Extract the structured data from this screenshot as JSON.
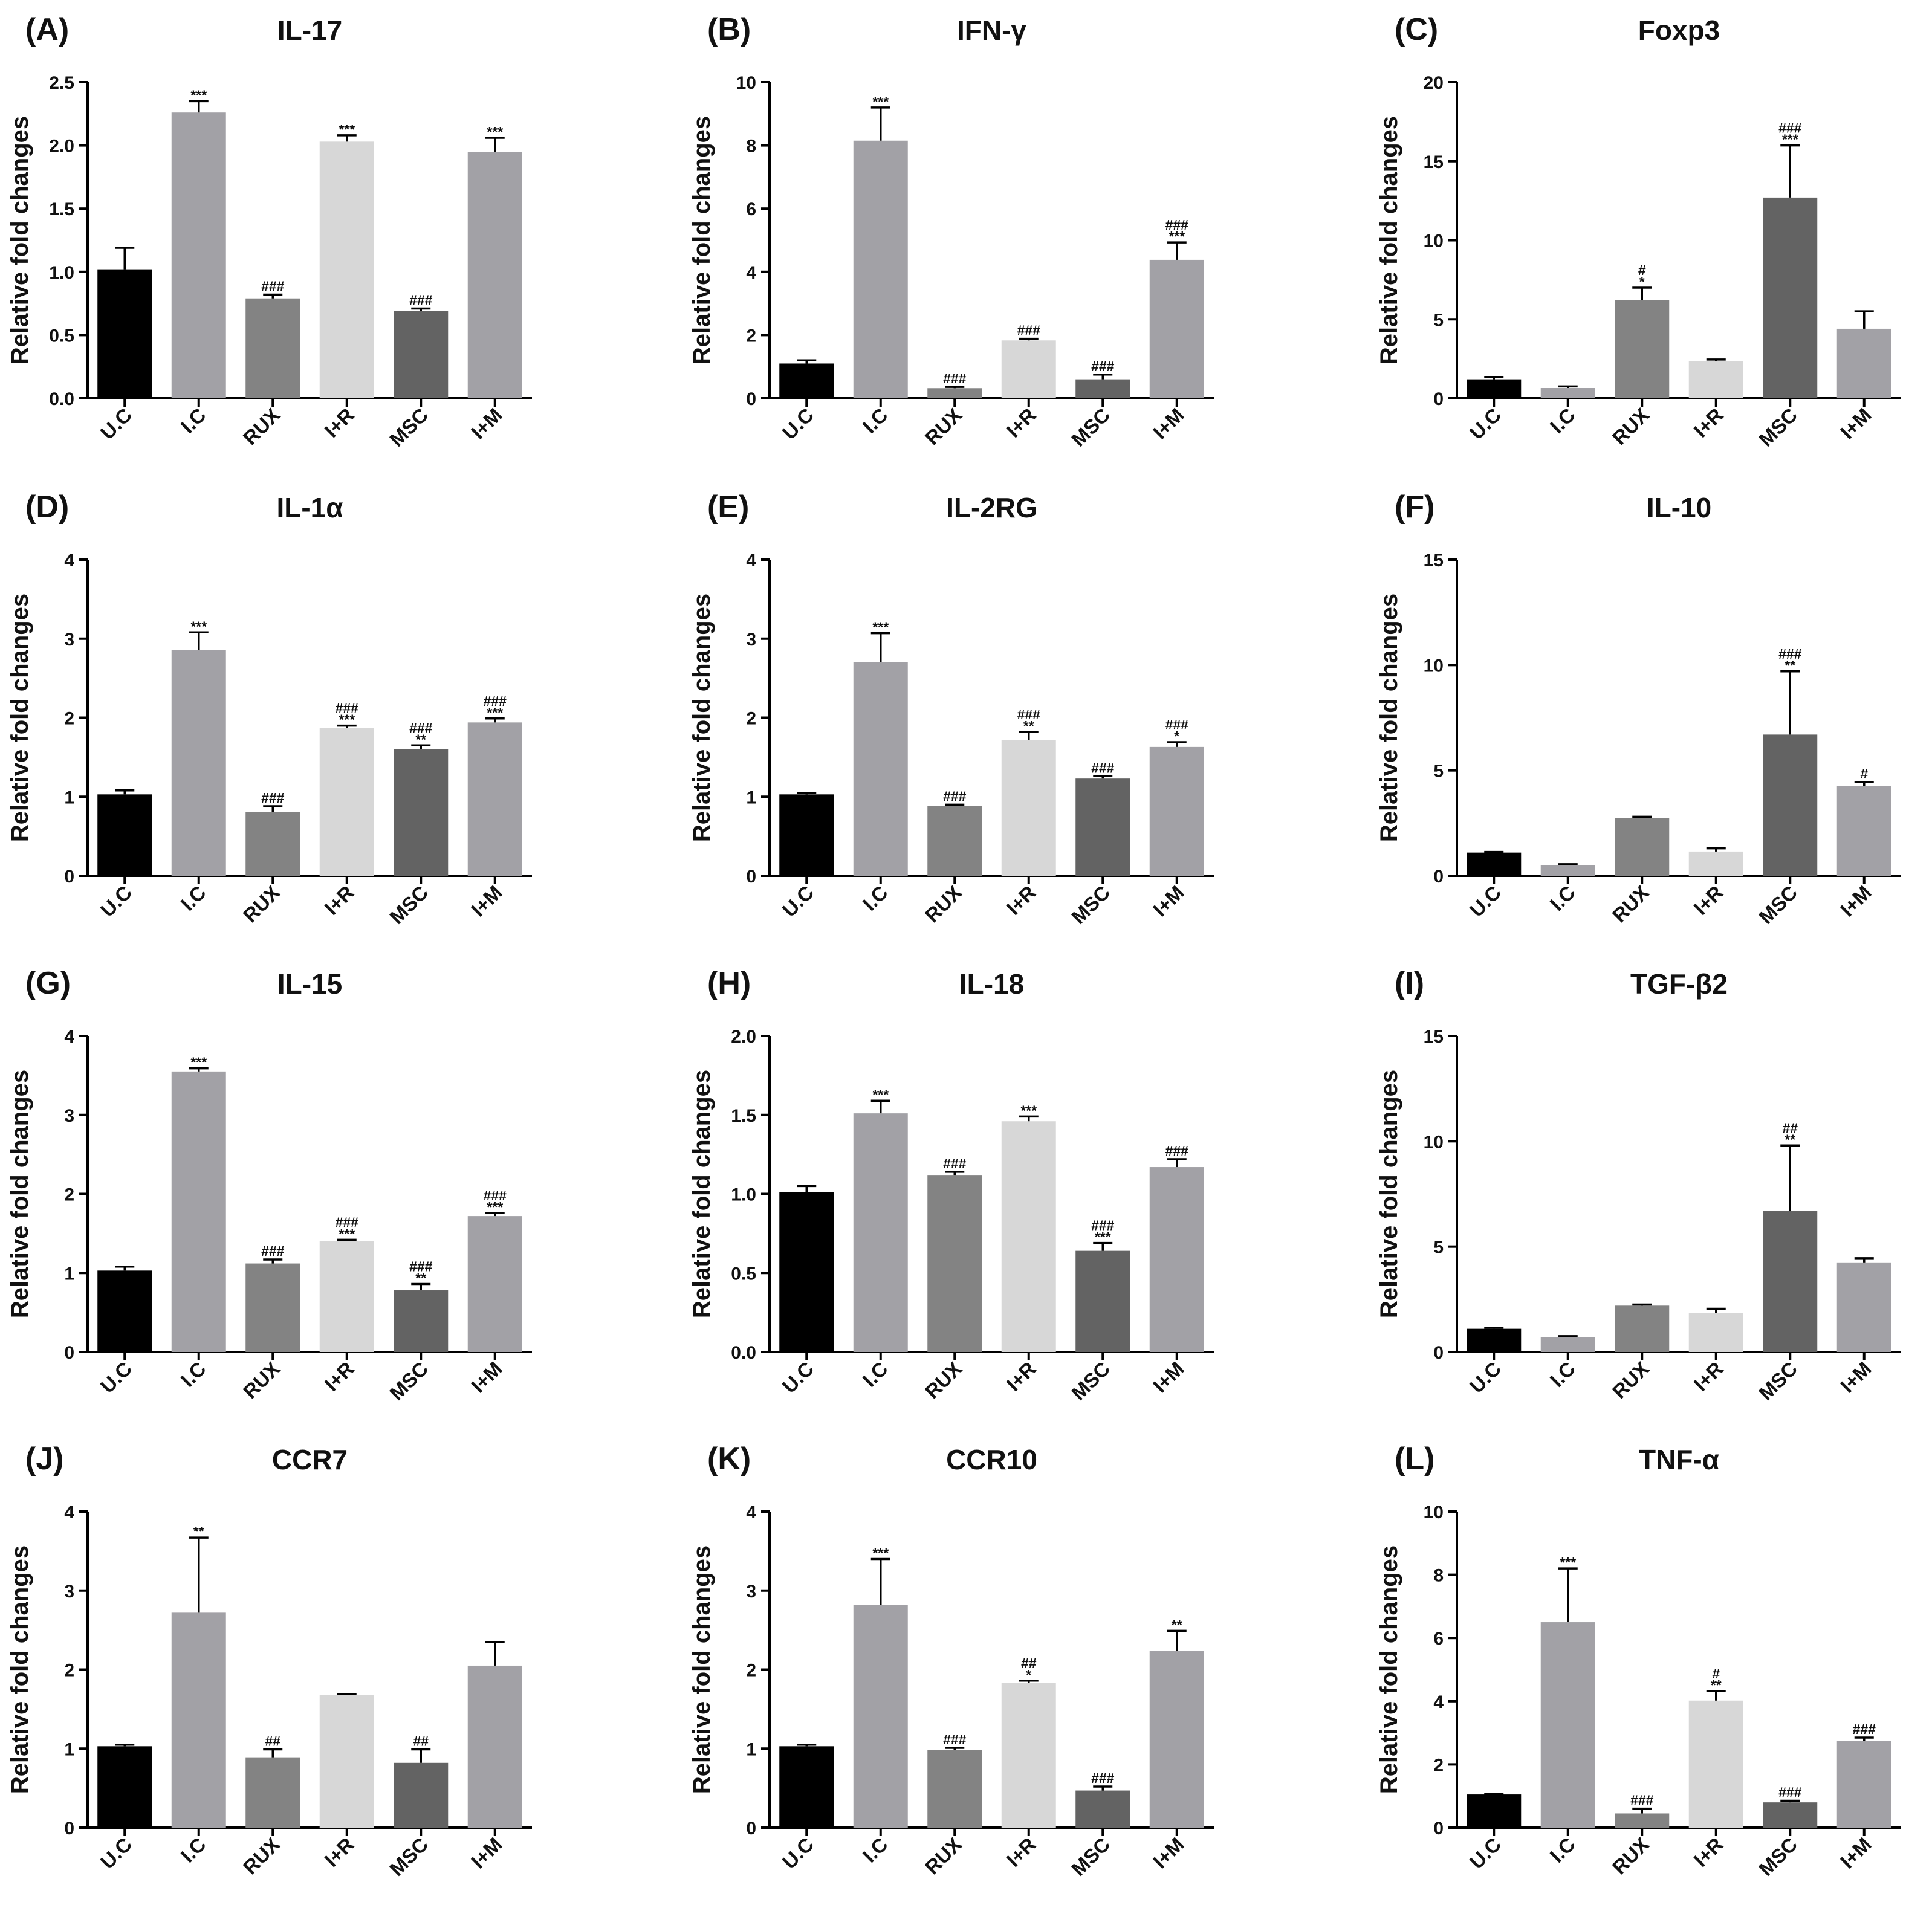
{
  "figure": {
    "y_axis_label": "Relative fold changes",
    "categories": [
      "U.C",
      "I.C",
      "RUX",
      "I+R",
      "MSC",
      "I+M"
    ],
    "bar_colors": [
      "#000000",
      "#a2a1a6",
      "#838383",
      "#d7d7d7",
      "#636363",
      "#a2a1a6"
    ]
  },
  "chart_data": [
    {
      "letter": "(A)",
      "title": "IL-17",
      "type": "bar",
      "ylim": [
        0,
        2.5
      ],
      "yticks": [
        "0.0",
        "0.5",
        "1.0",
        "1.5",
        "2.0",
        "2.5"
      ],
      "values": [
        1.02,
        2.26,
        0.79,
        2.03,
        0.69,
        1.95
      ],
      "errors": [
        0.17,
        0.09,
        0.03,
        0.05,
        0.02,
        0.11
      ],
      "sig_star": [
        "",
        "***",
        "",
        "***",
        "",
        "***"
      ],
      "sig_hash": [
        "",
        "",
        "###",
        "",
        "###",
        ""
      ]
    },
    {
      "letter": "(B)",
      "title": "IFN-γ",
      "type": "bar",
      "ylim": [
        0,
        10
      ],
      "yticks": [
        "0",
        "2",
        "4",
        "6",
        "8",
        "10"
      ],
      "values": [
        1.1,
        8.15,
        0.32,
        1.83,
        0.6,
        4.38
      ],
      "errors": [
        0.1,
        1.05,
        0.04,
        0.05,
        0.15,
        0.55
      ],
      "sig_star": [
        "",
        "***",
        "",
        "",
        "",
        "***"
      ],
      "sig_hash": [
        "",
        "",
        "###",
        "###",
        "###",
        "###"
      ]
    },
    {
      "letter": "(C)",
      "title": "Foxp3",
      "type": "bar",
      "ylim": [
        0,
        20
      ],
      "yticks": [
        "0",
        "5",
        "10",
        "15",
        "20"
      ],
      "values": [
        1.2,
        0.65,
        6.2,
        2.35,
        12.7,
        4.4
      ],
      "errors": [
        0.15,
        0.1,
        0.8,
        0.1,
        3.3,
        1.1
      ],
      "sig_star": [
        "",
        "",
        "*",
        "",
        "***",
        ""
      ],
      "sig_hash": [
        "",
        "",
        "#",
        "",
        "###",
        ""
      ]
    },
    {
      "letter": "(D)",
      "title": "IL-1α",
      "type": "bar",
      "ylim": [
        0,
        4
      ],
      "yticks": [
        "0",
        "1",
        "2",
        "3",
        "4"
      ],
      "values": [
        1.03,
        2.86,
        0.81,
        1.87,
        1.6,
        1.94
      ],
      "errors": [
        0.05,
        0.22,
        0.07,
        0.03,
        0.05,
        0.05
      ],
      "sig_star": [
        "",
        "***",
        "",
        "***",
        "**",
        "***"
      ],
      "sig_hash": [
        "",
        "",
        "###",
        "###",
        "###",
        "###"
      ]
    },
    {
      "letter": "(E)",
      "title": "IL-2RG",
      "type": "bar",
      "ylim": [
        0,
        4
      ],
      "yticks": [
        "0",
        "1",
        "2",
        "3",
        "4"
      ],
      "values": [
        1.03,
        2.7,
        0.88,
        1.72,
        1.23,
        1.63
      ],
      "errors": [
        0.02,
        0.37,
        0.02,
        0.1,
        0.03,
        0.06
      ],
      "sig_star": [
        "",
        "***",
        "",
        "**",
        "",
        "*"
      ],
      "sig_hash": [
        "",
        "",
        "###",
        "###",
        "###",
        "###"
      ]
    },
    {
      "letter": "(F)",
      "title": "IL-10",
      "type": "bar",
      "ylim": [
        0,
        15
      ],
      "yticks": [
        "0",
        "5",
        "10",
        "15"
      ],
      "values": [
        1.1,
        0.5,
        2.75,
        1.15,
        6.7,
        4.25
      ],
      "errors": [
        0.03,
        0.05,
        0.05,
        0.15,
        3.0,
        0.2
      ],
      "sig_star": [
        "",
        "",
        "",
        "",
        "**",
        ""
      ],
      "sig_hash": [
        "",
        "",
        "",
        "",
        "###",
        "#"
      ]
    },
    {
      "letter": "(G)",
      "title": "IL-15",
      "type": "bar",
      "ylim": [
        0,
        4
      ],
      "yticks": [
        "0",
        "1",
        "2",
        "3",
        "4"
      ],
      "values": [
        1.03,
        3.55,
        1.12,
        1.4,
        0.78,
        1.72
      ],
      "errors": [
        0.05,
        0.04,
        0.05,
        0.02,
        0.08,
        0.04
      ],
      "sig_star": [
        "",
        "***",
        "",
        "***",
        "**",
        "***"
      ],
      "sig_hash": [
        "",
        "",
        "###",
        "###",
        "###",
        "###"
      ]
    },
    {
      "letter": "(H)",
      "title": "IL-18",
      "type": "bar",
      "ylim": [
        0,
        2.0
      ],
      "yticks": [
        "0.0",
        "0.5",
        "1.0",
        "1.5",
        "2.0"
      ],
      "values": [
        1.01,
        1.51,
        1.12,
        1.46,
        0.64,
        1.17
      ],
      "errors": [
        0.04,
        0.08,
        0.02,
        0.03,
        0.05,
        0.05
      ],
      "sig_star": [
        "",
        "***",
        "",
        "***",
        "***",
        ""
      ],
      "sig_hash": [
        "",
        "",
        "###",
        "",
        "###",
        "###"
      ]
    },
    {
      "letter": "(I)",
      "title": "TGF-β2",
      "type": "bar",
      "ylim": [
        0,
        15
      ],
      "yticks": [
        "0",
        "5",
        "10",
        "15"
      ],
      "values": [
        1.1,
        0.7,
        2.2,
        1.85,
        6.7,
        4.25
      ],
      "errors": [
        0.05,
        0.05,
        0.05,
        0.2,
        3.1,
        0.2
      ],
      "sig_star": [
        "",
        "",
        "",
        "",
        "**",
        ""
      ],
      "sig_hash": [
        "",
        "",
        "",
        "",
        "##",
        ""
      ]
    },
    {
      "letter": "(J)",
      "title": "CCR7",
      "type": "bar",
      "ylim": [
        0,
        4
      ],
      "yticks": [
        "0",
        "1",
        "2",
        "3",
        "4"
      ],
      "values": [
        1.03,
        2.72,
        0.89,
        1.68,
        0.82,
        2.05
      ],
      "errors": [
        0.02,
        0.95,
        0.1,
        0.01,
        0.17,
        0.3
      ],
      "sig_star": [
        "",
        "**",
        "",
        "",
        "",
        ""
      ],
      "sig_hash": [
        "",
        "",
        "##",
        "",
        "##",
        ""
      ]
    },
    {
      "letter": "(K)",
      "title": "CCR10",
      "type": "bar",
      "ylim": [
        0,
        4
      ],
      "yticks": [
        "0",
        "1",
        "2",
        "3",
        "4"
      ],
      "values": [
        1.03,
        2.82,
        0.98,
        1.83,
        0.47,
        2.24
      ],
      "errors": [
        0.02,
        0.58,
        0.03,
        0.03,
        0.05,
        0.25
      ],
      "sig_star": [
        "",
        "***",
        "",
        "*",
        "",
        "**"
      ],
      "sig_hash": [
        "",
        "",
        "###",
        "##",
        "###",
        ""
      ]
    },
    {
      "letter": "(L)",
      "title": "TNF-α",
      "type": "bar",
      "ylim": [
        0,
        10
      ],
      "yticks": [
        "0",
        "2",
        "4",
        "6",
        "8",
        "10"
      ],
      "values": [
        1.05,
        6.5,
        0.45,
        4.02,
        0.8,
        2.75
      ],
      "errors": [
        0.01,
        1.7,
        0.15,
        0.3,
        0.05,
        0.1
      ],
      "sig_star": [
        "",
        "***",
        "",
        "**",
        "",
        ""
      ],
      "sig_hash": [
        "",
        "",
        "###",
        "#",
        "###",
        "###"
      ]
    }
  ]
}
